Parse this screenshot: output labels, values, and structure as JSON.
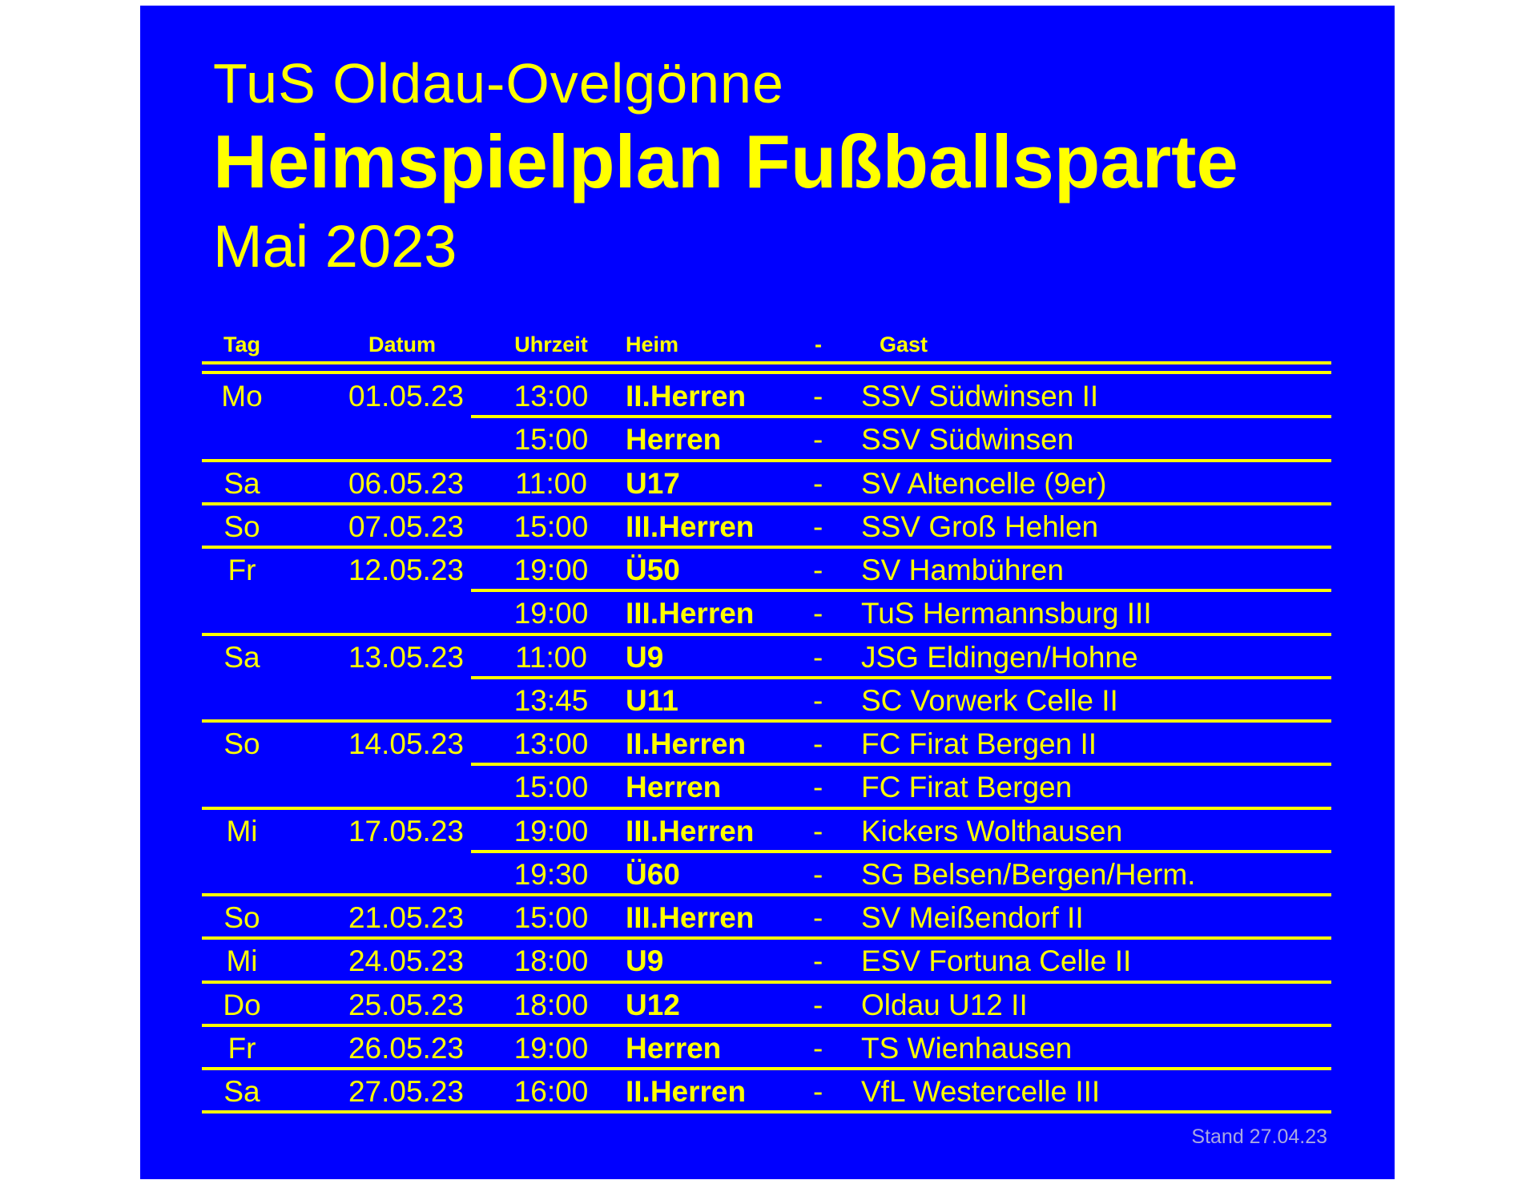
{
  "header": {
    "club": "TuS Oldau-Ovelgönne",
    "title": "Heimspielplan Fußballsparte",
    "month": "Mai 2023"
  },
  "columns": {
    "tag": "Tag",
    "datum": "Datum",
    "uhrzeit": "Uhrzeit",
    "heim": "Heim",
    "sep": "-",
    "gast": "Gast"
  },
  "days": [
    {
      "tag": "Mo",
      "datum": "01.05.23",
      "matches": [
        {
          "uhrzeit": "13:00",
          "heim": "II.Herren",
          "gast": "SSV Südwinsen II"
        },
        {
          "uhrzeit": "15:00",
          "heim": "Herren",
          "gast": "SSV Südwinsen"
        }
      ]
    },
    {
      "tag": "Sa",
      "datum": "06.05.23",
      "matches": [
        {
          "uhrzeit": "11:00",
          "heim": "U17",
          "gast": "SV Altencelle  (9er)"
        }
      ]
    },
    {
      "tag": "So",
      "datum": "07.05.23",
      "matches": [
        {
          "uhrzeit": "15:00",
          "heim": "III.Herren",
          "gast": "SSV Groß Hehlen"
        }
      ]
    },
    {
      "tag": "Fr",
      "datum": "12.05.23",
      "matches": [
        {
          "uhrzeit": "19:00",
          "heim": "Ü50",
          "gast": "SV Hambühren"
        },
        {
          "uhrzeit": "19:00",
          "heim": "III.Herren",
          "gast": "TuS Hermannsburg III"
        }
      ]
    },
    {
      "tag": "Sa",
      "datum": "13.05.23",
      "matches": [
        {
          "uhrzeit": "11:00",
          "heim": "U9",
          "gast": "JSG Eldingen/Hohne"
        },
        {
          "uhrzeit": "13:45",
          "heim": "U11",
          "gast": "SC Vorwerk Celle II"
        }
      ]
    },
    {
      "tag": "So",
      "datum": "14.05.23",
      "matches": [
        {
          "uhrzeit": "13:00",
          "heim": "II.Herren",
          "gast": "FC Firat Bergen II"
        },
        {
          "uhrzeit": "15:00",
          "heim": "Herren",
          "gast": "FC Firat Bergen"
        }
      ]
    },
    {
      "tag": "Mi",
      "datum": "17.05.23",
      "matches": [
        {
          "uhrzeit": "19:00",
          "heim": "III.Herren",
          "gast": "Kickers Wolthausen"
        },
        {
          "uhrzeit": "19:30",
          "heim": "Ü60",
          "gast": "SG Belsen/Bergen/Herm."
        }
      ]
    },
    {
      "tag": "So",
      "datum": "21.05.23",
      "matches": [
        {
          "uhrzeit": "15:00",
          "heim": "III.Herren",
          "gast": "SV Meißendorf II"
        }
      ]
    },
    {
      "tag": "Mi",
      "datum": "24.05.23",
      "matches": [
        {
          "uhrzeit": "18:00",
          "heim": "U9",
          "gast": "ESV Fortuna Celle II"
        }
      ]
    },
    {
      "tag": "Do",
      "datum": "25.05.23",
      "matches": [
        {
          "uhrzeit": "18:00",
          "heim": "U12",
          "gast": "Oldau U12 II"
        }
      ]
    },
    {
      "tag": "Fr",
      "datum": "26.05.23",
      "matches": [
        {
          "uhrzeit": "19:00",
          "heim": "Herren",
          "gast": "TS Wienhausen"
        }
      ]
    },
    {
      "tag": "Sa",
      "datum": "27.05.23",
      "matches": [
        {
          "uhrzeit": "16:00",
          "heim": "II.Herren",
          "gast": "VfL Westercelle III"
        }
      ]
    }
  ],
  "footer": {
    "stand": "Stand 27.04.23"
  },
  "colors": {
    "background": "#0000ff",
    "text": "#ffff00",
    "footer": "#a8a8e0"
  }
}
